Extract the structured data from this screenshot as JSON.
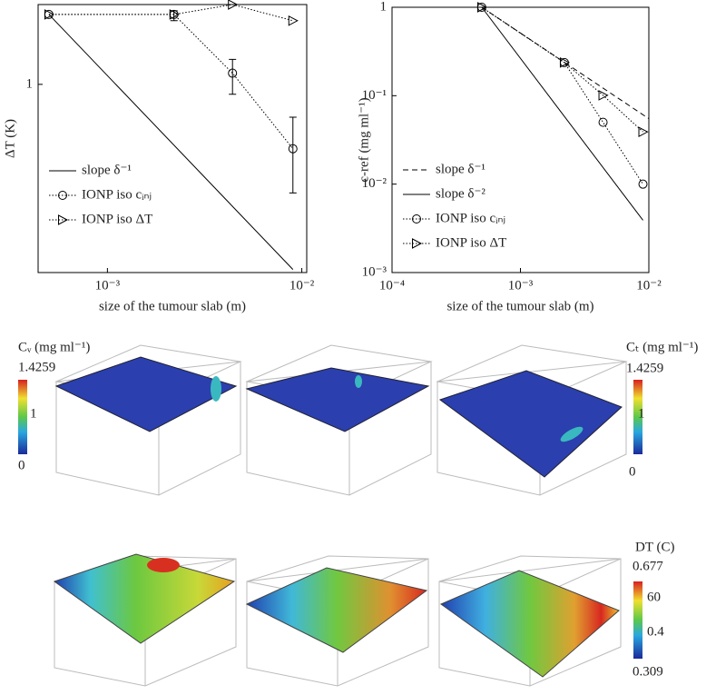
{
  "chart_data": [
    {
      "type": "line",
      "x_label": "size of the tumour slab (m)",
      "y_label": "ΔT (K)",
      "log_x": true,
      "log_y": true,
      "legend": "lower left",
      "xlim": [
        0.00044,
        0.0106
      ],
      "ylim": [
        0.11,
        2.55
      ],
      "xticks": [
        {
          "value": 0.001,
          "label": "10⁻³"
        },
        {
          "value": 0.01,
          "label": "10⁻²"
        }
      ],
      "yticks": [
        1
      ],
      "series": [
        {
          "name": "slope δ⁻¹",
          "color": "#000000",
          "style": "solid",
          "marker": null,
          "x": [
            0.0005,
            0.009
          ],
          "values": [
            2.27,
            0.114
          ]
        },
        {
          "name": "IONP iso cᵢₙⱼ",
          "color": "#000000",
          "style": "dotted",
          "marker": "circle",
          "x": [
            0.0005,
            0.0022,
            0.0044,
            0.009
          ],
          "values": [
            2.27,
            2.27,
            1.14,
            0.47
          ],
          "lower": [
            null,
            2.11,
            0.89,
            0.28
          ],
          "upper": [
            null,
            2.37,
            1.34,
            0.68
          ]
        },
        {
          "name": "IONP iso ΔT",
          "color": "#000000",
          "style": "dotted",
          "marker": "triangle",
          "x": [
            0.0005,
            0.0022,
            0.0044,
            0.009
          ],
          "values": [
            2.27,
            2.27,
            2.55,
            2.11
          ]
        }
      ]
    },
    {
      "type": "line",
      "x_label": "size of the tumour slab (m)",
      "y_label": "c-ref (mg ml⁻¹)",
      "log_x": true,
      "log_y": true,
      "legend": "lower left",
      "xlim": [
        0.0001,
        0.01
      ],
      "ylim": [
        0.001,
        1
      ],
      "xticks": [
        {
          "value": 0.0001,
          "label": "10⁻⁴"
        },
        {
          "value": 0.001,
          "label": "10⁻³"
        },
        {
          "value": 0.01,
          "label": "10⁻²"
        }
      ],
      "yticks": [
        {
          "value": 0.001,
          "label": "10⁻³"
        },
        {
          "value": 0.01,
          "label": "10⁻²"
        },
        {
          "value": 0.1,
          "label": "10⁻¹"
        },
        1
      ],
      "series": [
        {
          "name": "slope δ⁻¹",
          "color": "#000000",
          "style": "dashed",
          "marker": null,
          "x": [
            0.0005,
            0.01
          ],
          "values": [
            1,
            0.055
          ]
        },
        {
          "name": "slope δ⁻²",
          "color": "#000000",
          "style": "solid",
          "marker": null,
          "x": [
            0.0005,
            0.009
          ],
          "values": [
            1,
            0.0039
          ]
        },
        {
          "name": "IONP iso cᵢₙⱼ",
          "color": "#000000",
          "style": "dotted",
          "marker": "circle",
          "x": [
            0.0005,
            0.0022,
            0.0044,
            0.009
          ],
          "values": [
            1,
            0.237,
            0.05,
            0.01
          ]
        },
        {
          "name": "IONP iso ΔT",
          "color": "#000000",
          "style": "dotted",
          "marker": "triangle",
          "x": [
            0.0005,
            0.0022,
            0.0044,
            0.009
          ],
          "values": [
            1,
            0.237,
            0.101,
            0.039
          ]
        }
      ]
    }
  ],
  "colorbars": [
    {
      "title": "Cᵥ (mg ml⁻¹)",
      "labels": [
        "1.4259",
        "1",
        "0"
      ]
    },
    {
      "title": "Cₜ (mg ml⁻¹)",
      "labels": [
        "1.4259",
        "1",
        "0"
      ]
    },
    {
      "title": "DT (C)",
      "labels": [
        "0.677",
        "60",
        "0.4",
        "0.309"
      ]
    }
  ]
}
